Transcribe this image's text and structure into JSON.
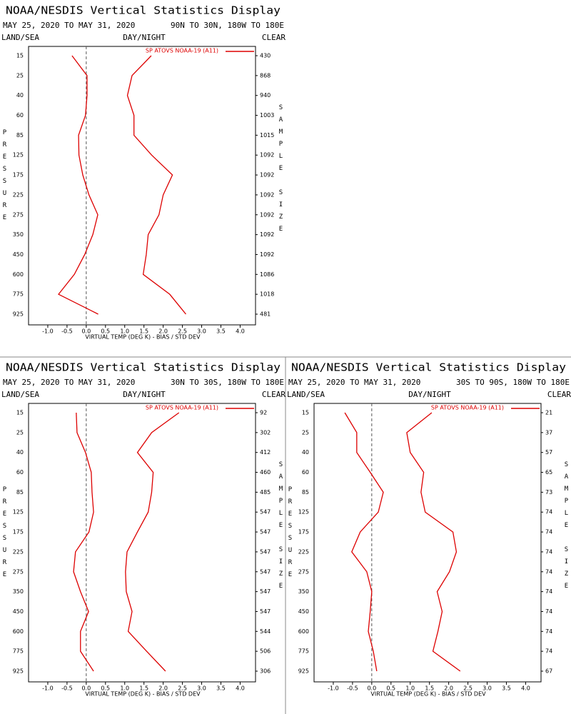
{
  "chart_data": [
    {
      "type": "line",
      "title": "NOAA/NESDIS Vertical Statistics Display",
      "subtitle": "MAY 25, 2020 TO MAY 31, 2020",
      "region": "90N TO 30N, 180W TO 180E",
      "land_sea": "LAND/SEA",
      "day_night": "DAY/NIGHT",
      "sky": "CLEAR",
      "ylabel": "PRESSURE",
      "y2label": "SAMPLE SIZE",
      "xlabel": "VIRTUAL TEMP (DEG K) - BIAS / STD DEV",
      "categories": [
        15,
        25,
        40,
        60,
        85,
        125,
        175,
        225,
        275,
        350,
        450,
        600,
        775,
        925
      ],
      "sample_size": [
        430,
        868,
        940,
        1003,
        1015,
        1092,
        1092,
        1092,
        1092,
        1092,
        1092,
        1086,
        1018,
        481
      ],
      "series": [
        {
          "name": "SP ATOVS NOAA-19 (A11)",
          "color": "#dd0000",
          "values": [
            -0.37,
            0.02,
            0.02,
            -0.02,
            -0.2,
            -0.19,
            -0.09,
            0.07,
            0.3,
            0.17,
            -0.04,
            -0.31,
            -0.72,
            0.31
          ],
          "std_dev": [
            1.69,
            1.19,
            1.07,
            1.24,
            1.24,
            1.7,
            2.24,
            2.0,
            1.89,
            1.61,
            1.56,
            1.48,
            2.17,
            2.59
          ]
        }
      ],
      "xlim": [
        -1.5,
        4.4
      ],
      "xticks": [
        {
          "value": -1,
          "label": "-1.0"
        },
        {
          "value": -0.5,
          "label": "-0.5"
        },
        {
          "value": 0,
          "label": "0.0"
        },
        {
          "value": 0.5,
          "label": "0.5"
        },
        {
          "value": 1,
          "label": "1.0"
        },
        {
          "value": 1.5,
          "label": "1.5"
        },
        {
          "value": 2,
          "label": "2.0"
        },
        {
          "value": 2.5,
          "label": "2.5"
        },
        {
          "value": 3,
          "label": "3.0"
        },
        {
          "value": 3.5,
          "label": "3.5"
        },
        {
          "value": 4,
          "label": "4.0"
        }
      ]
    },
    {
      "type": "line",
      "title": "NOAA/NESDIS Vertical Statistics Display",
      "subtitle": "MAY 25, 2020 TO MAY 31, 2020",
      "region": "30N TO 30S, 180W TO 180E",
      "land_sea": "LAND/SEA",
      "day_night": "DAY/NIGHT",
      "sky": "CLEAR",
      "ylabel": "PRESSURE",
      "y2label": "SAMPLE SIZE",
      "xlabel": "VIRTUAL TEMP (DEG K) - BIAS / STD DEV",
      "categories": [
        15,
        25,
        40,
        60,
        85,
        125,
        175,
        225,
        275,
        350,
        450,
        600,
        775,
        925
      ],
      "sample_size": [
        92,
        302,
        412,
        460,
        485,
        547,
        547,
        547,
        547,
        547,
        547,
        544,
        506,
        306
      ],
      "series": [
        {
          "name": "SP ATOVS NOAA-19 (A11)",
          "color": "#dd0000",
          "values": [
            -0.26,
            -0.24,
            -0.02,
            0.13,
            0.15,
            0.19,
            0.07,
            -0.28,
            -0.33,
            -0.15,
            0.06,
            -0.15,
            -0.15,
            0.19
          ],
          "std_dev": [
            2.41,
            1.7,
            1.33,
            1.74,
            1.7,
            1.61,
            1.33,
            1.06,
            1.02,
            1.04,
            1.19,
            1.09,
            1.57,
            2.06
          ]
        }
      ],
      "xlim": [
        -1.5,
        4.4
      ],
      "xticks": [
        {
          "value": -1,
          "label": "-1.0"
        },
        {
          "value": -0.5,
          "label": "-0.5"
        },
        {
          "value": 0,
          "label": "0.0"
        },
        {
          "value": 0.5,
          "label": "0.5"
        },
        {
          "value": 1,
          "label": "1.0"
        },
        {
          "value": 1.5,
          "label": "1.5"
        },
        {
          "value": 2,
          "label": "2.0"
        },
        {
          "value": 2.5,
          "label": "2.5"
        },
        {
          "value": 3,
          "label": "3.0"
        },
        {
          "value": 3.5,
          "label": "3.5"
        },
        {
          "value": 4,
          "label": "4.0"
        }
      ]
    },
    {
      "type": "line",
      "title": "NOAA/NESDIS Vertical Statistics Display",
      "subtitle": "MAY 25, 2020 TO MAY 31, 2020",
      "region": "30S TO 90S, 180W TO 180E",
      "land_sea": "LAND/SEA",
      "day_night": "DAY/NIGHT",
      "sky": "CLEAR",
      "ylabel": "PRESSURE",
      "y2label": "SAMPLE SIZE",
      "xlabel": "VIRTUAL TEMP (DEG K) - BIAS / STD DEV",
      "categories": [
        15,
        25,
        40,
        60,
        85,
        125,
        175,
        225,
        275,
        350,
        450,
        600,
        775,
        925
      ],
      "sample_size": [
        21,
        37,
        57,
        65,
        73,
        74,
        74,
        74,
        74,
        74,
        74,
        74,
        74,
        67
      ],
      "series": [
        {
          "name": "SP ATOVS NOAA-19 (A11)",
          "color": "#dd0000",
          "values": [
            -0.7,
            -0.39,
            -0.39,
            -0.04,
            0.3,
            0.17,
            -0.3,
            -0.52,
            -0.13,
            0.0,
            -0.04,
            -0.09,
            0.04,
            0.13
          ],
          "std_dev": [
            1.56,
            0.91,
            1.0,
            1.35,
            1.28,
            1.39,
            2.11,
            2.2,
            2.02,
            1.7,
            1.83,
            1.72,
            1.59,
            2.3
          ]
        }
      ],
      "xlim": [
        -1.5,
        4.4
      ],
      "xticks": [
        {
          "value": -1,
          "label": "-1.0"
        },
        {
          "value": -0.5,
          "label": "-0.5"
        },
        {
          "value": 0,
          "label": "0.0"
        },
        {
          "value": 0.5,
          "label": "0.5"
        },
        {
          "value": 1,
          "label": "1.0"
        },
        {
          "value": 1.5,
          "label": "1.5"
        },
        {
          "value": 2,
          "label": "2.0"
        },
        {
          "value": 2.5,
          "label": "2.5"
        },
        {
          "value": 3,
          "label": "3.0"
        },
        {
          "value": 3.5,
          "label": "3.5"
        },
        {
          "value": 4,
          "label": "4.0"
        }
      ]
    }
  ]
}
